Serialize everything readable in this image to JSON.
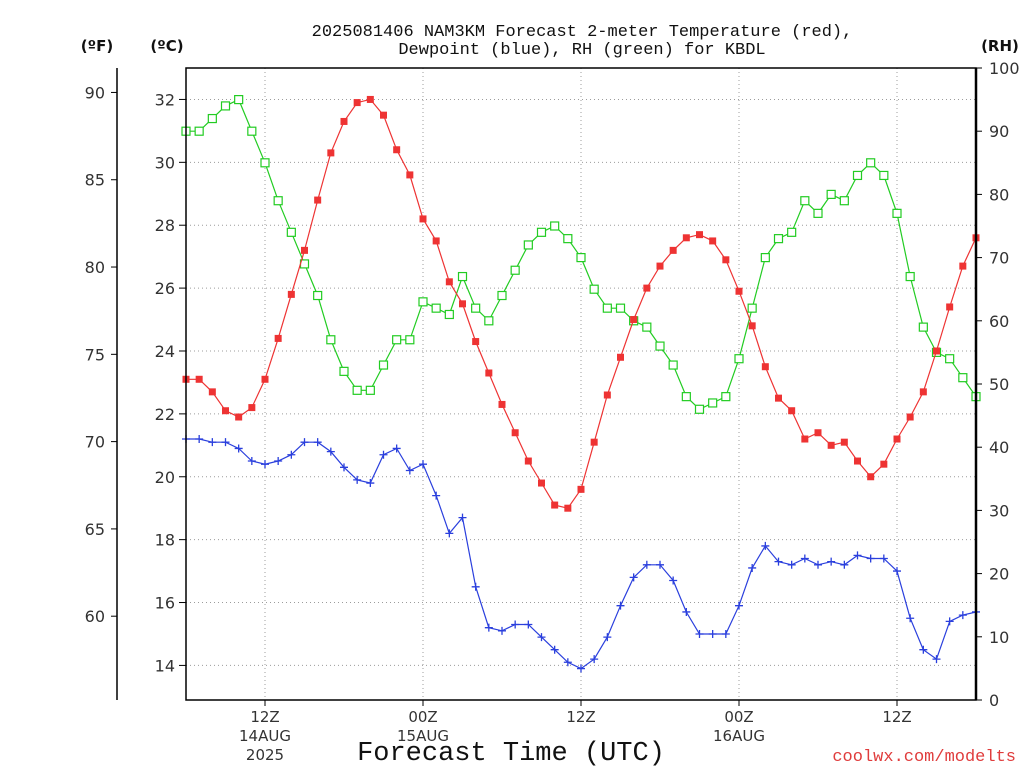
{
  "credit": {
    "text": "coolwx.com/modelts",
    "color": "#e03c3c"
  },
  "chart_data": {
    "type": "line",
    "title": [
      "2025081406 NAM3KM Forecast 2-meter Temperature (red),",
      "Dewpoint (blue), RH (green) for KBDL"
    ],
    "xlabel": "Forecast Time (UTC)",
    "grid": true,
    "xlim": [
      "2025-08-14T06:00Z",
      "2025-08-16T18:00Z"
    ],
    "x_ticks": [
      {
        "time": "2025-08-14T12:00Z",
        "label": [
          "12Z",
          "14AUG",
          "2025"
        ]
      },
      {
        "time": "2025-08-15T00:00Z",
        "label": [
          "00Z",
          "15AUG"
        ]
      },
      {
        "time": "2025-08-15T12:00Z",
        "label": [
          "12Z"
        ]
      },
      {
        "time": "2025-08-16T00:00Z",
        "label": [
          "00Z",
          "16AUG"
        ]
      },
      {
        "time": "2025-08-16T12:00Z",
        "label": [
          "12Z"
        ]
      }
    ],
    "y_axes": {
      "fahrenheit": {
        "label": "(ºF)",
        "range": [
          55.2,
          91.4
        ],
        "ticks": [
          60,
          65,
          70,
          75,
          80,
          85,
          90
        ]
      },
      "celsius": {
        "label": "(ºC)",
        "range": [
          12.9,
          33.0
        ],
        "ticks": [
          14,
          16,
          18,
          20,
          22,
          24,
          26,
          28,
          30,
          32
        ]
      },
      "rh": {
        "label": "(RH)",
        "range": [
          0,
          100
        ],
        "ticks": [
          0,
          10,
          20,
          30,
          40,
          50,
          60,
          70,
          80,
          90,
          100
        ]
      }
    },
    "x": [
      "2025-08-14T06:00Z",
      "2025-08-14T07:00Z",
      "2025-08-14T08:00Z",
      "2025-08-14T09:00Z",
      "2025-08-14T10:00Z",
      "2025-08-14T11:00Z",
      "2025-08-14T12:00Z",
      "2025-08-14T13:00Z",
      "2025-08-14T14:00Z",
      "2025-08-14T15:00Z",
      "2025-08-14T16:00Z",
      "2025-08-14T17:00Z",
      "2025-08-14T18:00Z",
      "2025-08-14T19:00Z",
      "2025-08-14T20:00Z",
      "2025-08-14T21:00Z",
      "2025-08-14T22:00Z",
      "2025-08-14T23:00Z",
      "2025-08-15T00:00Z",
      "2025-08-15T01:00Z",
      "2025-08-15T02:00Z",
      "2025-08-15T03:00Z",
      "2025-08-15T04:00Z",
      "2025-08-15T05:00Z",
      "2025-08-15T06:00Z",
      "2025-08-15T07:00Z",
      "2025-08-15T08:00Z",
      "2025-08-15T09:00Z",
      "2025-08-15T10:00Z",
      "2025-08-15T11:00Z",
      "2025-08-15T12:00Z",
      "2025-08-15T13:00Z",
      "2025-08-15T14:00Z",
      "2025-08-15T15:00Z",
      "2025-08-15T16:00Z",
      "2025-08-15T17:00Z",
      "2025-08-15T18:00Z",
      "2025-08-15T19:00Z",
      "2025-08-15T20:00Z",
      "2025-08-15T21:00Z",
      "2025-08-15T22:00Z",
      "2025-08-15T23:00Z",
      "2025-08-16T00:00Z",
      "2025-08-16T01:00Z",
      "2025-08-16T02:00Z",
      "2025-08-16T03:00Z",
      "2025-08-16T04:00Z",
      "2025-08-16T05:00Z",
      "2025-08-16T06:00Z",
      "2025-08-16T07:00Z",
      "2025-08-16T08:00Z",
      "2025-08-16T09:00Z",
      "2025-08-16T10:00Z",
      "2025-08-16T11:00Z",
      "2025-08-16T12:00Z",
      "2025-08-16T13:00Z",
      "2025-08-16T14:00Z",
      "2025-08-16T15:00Z",
      "2025-08-16T16:00Z",
      "2025-08-16T17:00Z",
      "2025-08-16T18:00Z"
    ],
    "series": [
      {
        "color": "#ee3333",
        "marker": "filled-square",
        "secondary_axis": false,
        "values": [
          23.1,
          23.1,
          22.7,
          22.1,
          21.9,
          22.2,
          23.1,
          24.4,
          25.8,
          27.2,
          28.8,
          30.3,
          31.3,
          31.9,
          32.0,
          31.5,
          30.4,
          29.6,
          28.2,
          27.5,
          26.2,
          25.5,
          24.3,
          23.3,
          22.3,
          21.4,
          20.5,
          19.8,
          19.1,
          19.0,
          19.6,
          21.1,
          22.6,
          23.8,
          25.0,
          26.0,
          26.7,
          27.2,
          27.6,
          27.7,
          27.5,
          26.9,
          25.9,
          24.8,
          23.5,
          22.5,
          22.1,
          21.2,
          21.4,
          21.0,
          21.1,
          20.5,
          20.0,
          20.4,
          21.2,
          21.9,
          22.7,
          24.0,
          25.4,
          26.7,
          27.6
        ]
      },
      {
        "color": "#2a3fdd",
        "marker": "plus",
        "secondary_axis": false,
        "values": [
          21.2,
          21.2,
          21.1,
          21.1,
          20.9,
          20.5,
          20.4,
          20.5,
          20.7,
          21.1,
          21.1,
          20.8,
          20.3,
          19.9,
          19.8,
          20.7,
          20.9,
          20.2,
          20.4,
          19.4,
          18.2,
          18.7,
          16.5,
          15.2,
          15.1,
          15.3,
          15.3,
          14.9,
          14.5,
          14.1,
          13.9,
          14.2,
          14.9,
          15.9,
          16.8,
          17.2,
          17.2,
          16.7,
          15.7,
          15.0,
          15.0,
          15.0,
          15.9,
          17.1,
          17.8,
          17.3,
          17.2,
          17.4,
          17.2,
          17.3,
          17.2,
          17.5,
          17.4,
          17.4,
          17.0,
          15.5,
          14.5,
          14.2,
          15.4,
          15.6,
          15.7
        ]
      },
      {
        "color": "#22cc22",
        "marker": "open-square",
        "secondary_axis": true,
        "values": [
          90,
          90,
          92,
          94,
          95,
          90,
          85,
          79,
          74,
          69,
          64,
          57,
          52,
          49,
          49,
          53,
          57,
          57,
          63,
          62,
          61,
          67,
          62,
          60,
          64,
          68,
          72,
          74,
          75,
          73,
          70,
          65,
          62,
          62,
          60,
          59,
          56,
          53,
          48,
          46,
          47,
          48,
          54,
          62,
          70,
          73,
          74,
          79,
          77,
          80,
          79,
          83,
          85,
          83,
          77,
          67,
          59,
          55,
          54,
          51,
          48
        ]
      }
    ]
  }
}
